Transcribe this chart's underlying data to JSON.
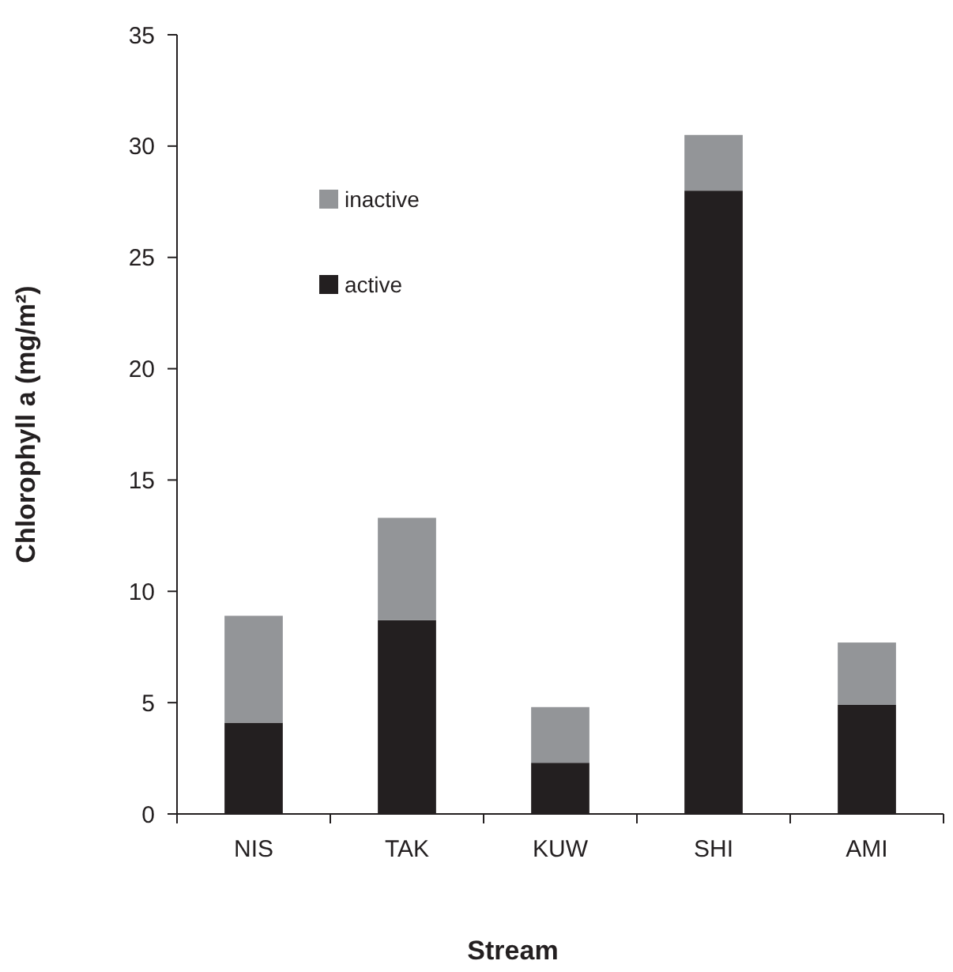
{
  "chart_data": {
    "type": "bar",
    "stacked": true,
    "xlabel": "Stream",
    "ylabel": "Chlorophyll a (mg/m²)",
    "categories": [
      "NIS",
      "TAK",
      "KUW",
      "SHI",
      "AMI"
    ],
    "series": [
      {
        "name": "active",
        "color": "#231f20",
        "values": [
          4.1,
          8.7,
          2.3,
          28.0,
          4.9
        ]
      },
      {
        "name": "inactive",
        "color": "#939598",
        "values": [
          4.8,
          4.6,
          2.5,
          2.5,
          2.8
        ]
      }
    ],
    "ylim": [
      0,
      35
    ],
    "yticks": [
      0,
      5,
      10,
      15,
      20,
      25,
      30,
      35
    ],
    "grid": false,
    "legend": "top left"
  }
}
